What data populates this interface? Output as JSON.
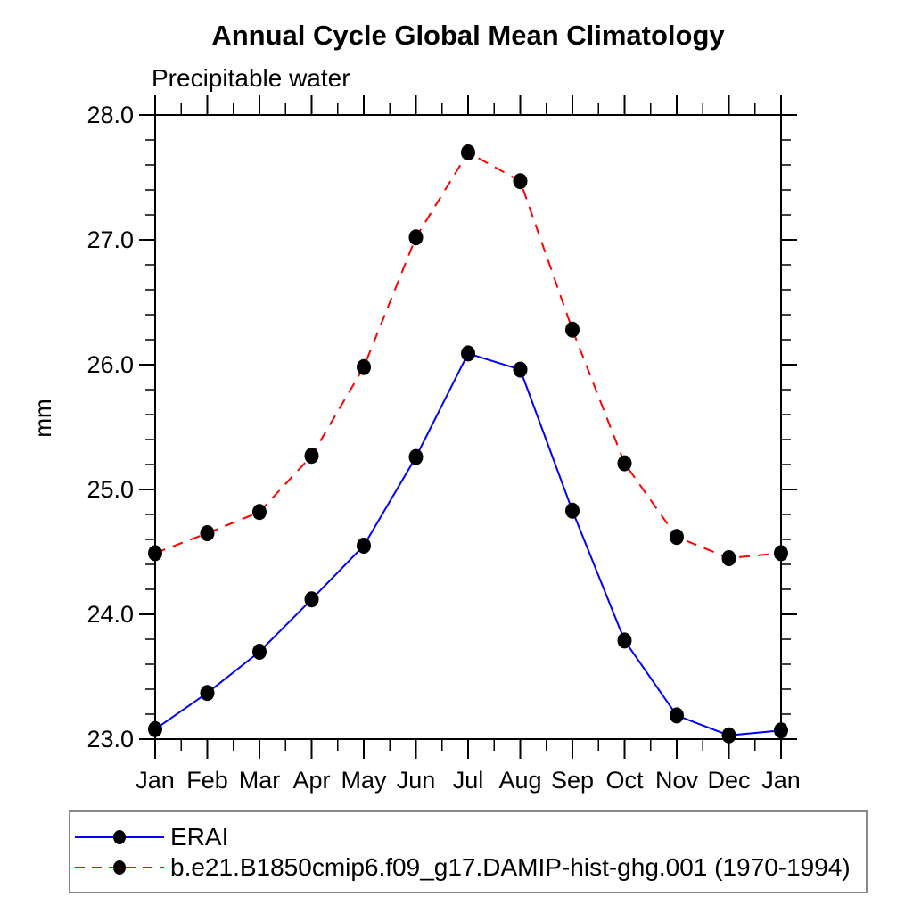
{
  "header": {
    "title": "Annual Cycle Global Mean Climatology",
    "subtitle": "Precipitable water"
  },
  "chart_data": {
    "type": "line",
    "title": "Annual Cycle Global Mean Climatology",
    "subtitle": "Precipitable water",
    "xlabel": "",
    "ylabel": "mm",
    "categories": [
      "Jan",
      "Feb",
      "Mar",
      "Apr",
      "May",
      "Jun",
      "Jul",
      "Aug",
      "Sep",
      "Oct",
      "Nov",
      "Dec",
      "Jan"
    ],
    "ylim": [
      23.0,
      28.0
    ],
    "ytick_labels": [
      "23.0",
      "24.0",
      "25.0",
      "26.0",
      "27.0",
      "28.0"
    ],
    "ytick_step": 1.0,
    "yminor_step": 0.2,
    "xminor": "half-month",
    "grid": false,
    "legend_position": "bottom-left-box",
    "marker": {
      "shape": "filled-circle",
      "color": "#000000"
    },
    "series": [
      {
        "name": "ERAI",
        "color": "#0000ff",
        "line_style": "solid",
        "values": [
          23.08,
          23.37,
          23.7,
          24.12,
          24.55,
          25.26,
          26.09,
          25.96,
          24.83,
          23.79,
          23.19,
          23.03,
          23.07
        ]
      },
      {
        "name": "b.e21.B1850cmip6.f09_g17.DAMIP-hist-ghg.001 (1970-1994)",
        "color": "#ff0000",
        "line_style": "dashed",
        "values": [
          24.49,
          24.65,
          24.82,
          25.27,
          25.98,
          27.02,
          27.7,
          27.47,
          26.28,
          25.21,
          24.62,
          24.45,
          24.49
        ]
      }
    ]
  }
}
